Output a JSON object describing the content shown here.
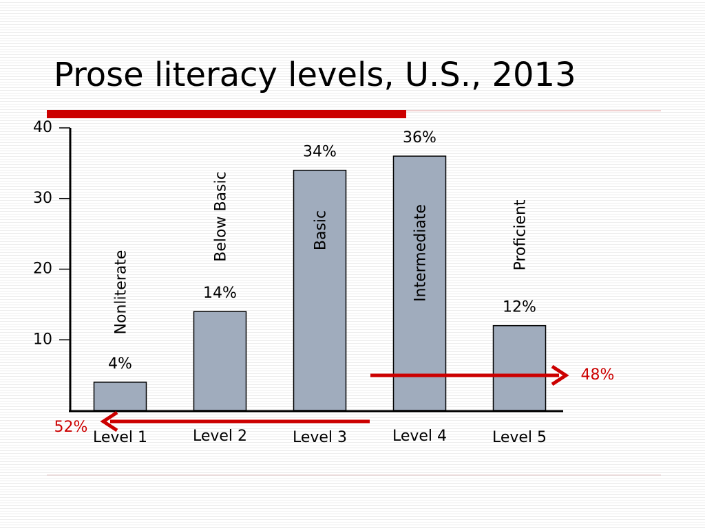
{
  "chart_data": {
    "type": "bar",
    "title": "Prose literacy levels, U.S., 2013",
    "categories": [
      "Level 1",
      "Level 2",
      "Level 3",
      "Level 4",
      "Level 5"
    ],
    "bar_names": [
      "Nonliterate",
      "Below Basic",
      "Basic",
      "Intermediate",
      "Proficient"
    ],
    "values": [
      4,
      14,
      34,
      36,
      12
    ],
    "value_labels": [
      "4%",
      "14%",
      "34%",
      "36%",
      "12%"
    ],
    "color": "#a0acbd",
    "ylim": [
      0,
      40
    ],
    "yticks": [
      10,
      20,
      30,
      40
    ],
    "annotations": [
      "52%",
      "48%"
    ]
  }
}
